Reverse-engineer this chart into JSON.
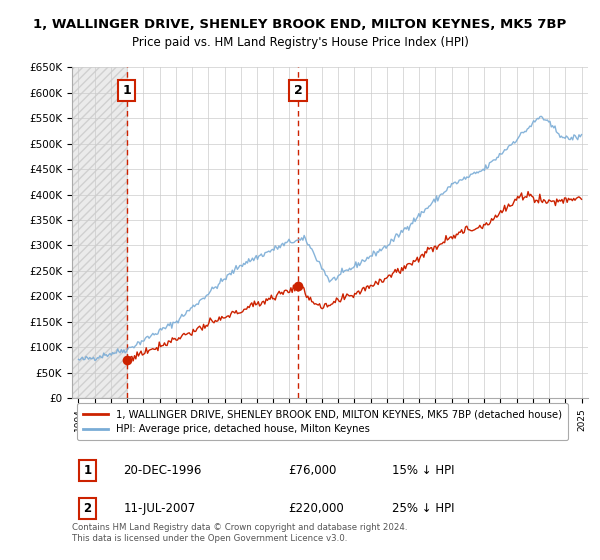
{
  "title": "1, WALLINGER DRIVE, SHENLEY BROOK END, MILTON KEYNES, MK5 7BP",
  "subtitle": "Price paid vs. HM Land Registry's House Price Index (HPI)",
  "ylabel_ticks": [
    "£0",
    "£50K",
    "£100K",
    "£150K",
    "£200K",
    "£250K",
    "£300K",
    "£350K",
    "£400K",
    "£450K",
    "£500K",
    "£550K",
    "£600K",
    "£650K"
  ],
  "ytick_values": [
    0,
    50000,
    100000,
    150000,
    200000,
    250000,
    300000,
    350000,
    400000,
    450000,
    500000,
    550000,
    600000,
    650000
  ],
  "sale1_date": 1996.97,
  "sale1_price": 76000,
  "sale1_label": "1",
  "sale2_date": 2007.54,
  "sale2_price": 220000,
  "sale2_label": "2",
  "hpi_color": "#7aacd6",
  "sale_color": "#cc2200",
  "vline_color": "#cc2200",
  "legend_label_red": "1, WALLINGER DRIVE, SHENLEY BROOK END, MILTON KEYNES, MK5 7BP (detached house)",
  "legend_label_blue": "HPI: Average price, detached house, Milton Keynes",
  "footer": "Contains HM Land Registry data © Crown copyright and database right 2024.\nThis data is licensed under the Open Government Licence v3.0.",
  "xlim_left": 1993.6,
  "xlim_right": 2025.4,
  "ylim_bottom": 0,
  "ylim_top": 650000,
  "sale1_row": "20-DEC-1996",
  "sale1_price_str": "£76,000",
  "sale1_hpi": "15% ↓ HPI",
  "sale2_row": "11-JUL-2007",
  "sale2_price_str": "£220,000",
  "sale2_hpi": "25% ↓ HPI"
}
